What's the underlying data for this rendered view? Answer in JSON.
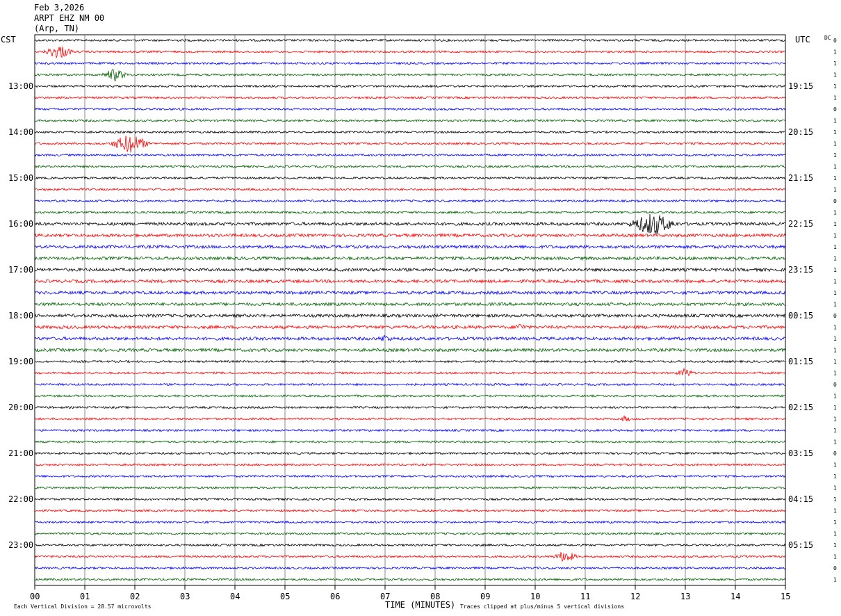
{
  "header": {
    "date": "Feb 3,2026",
    "station": "ARPT EHZ NM 00",
    "location": "(Arp, TN)"
  },
  "chart_data": {
    "type": "line",
    "subtype": "helicorder",
    "left_zone": "CST",
    "right_zone": "UTC",
    "dc_label": "DC",
    "xlabel": "TIME (MINUTES)",
    "x_ticks": [
      "00",
      "01",
      "02",
      "03",
      "04",
      "05",
      "06",
      "07",
      "08",
      "09",
      "10",
      "11",
      "12",
      "13",
      "14",
      "15"
    ],
    "xlim": [
      0,
      15
    ],
    "trace_count": 48,
    "trace_colors": [
      "#000000",
      "#ff0000",
      "#0000ff",
      "#006400"
    ],
    "left_hour_labels": [
      {
        "trace": 4,
        "label": "13:00"
      },
      {
        "trace": 8,
        "label": "14:00"
      },
      {
        "trace": 12,
        "label": "15:00"
      },
      {
        "trace": 16,
        "label": "16:00"
      },
      {
        "trace": 20,
        "label": "17:00"
      },
      {
        "trace": 24,
        "label": "18:00"
      },
      {
        "trace": 28,
        "label": "19:00"
      },
      {
        "trace": 32,
        "label": "20:00"
      },
      {
        "trace": 36,
        "label": "21:00"
      },
      {
        "trace": 40,
        "label": "22:00"
      },
      {
        "trace": 44,
        "label": "23:00"
      }
    ],
    "right_hour_labels": [
      {
        "trace": 4,
        "label": "19:15"
      },
      {
        "trace": 8,
        "label": "20:15"
      },
      {
        "trace": 12,
        "label": "21:15"
      },
      {
        "trace": 16,
        "label": "22:15"
      },
      {
        "trace": 20,
        "label": "23:15"
      },
      {
        "trace": 24,
        "label": "00:15"
      },
      {
        "trace": 28,
        "label": "01:15"
      },
      {
        "trace": 32,
        "label": "02:15"
      },
      {
        "trace": 36,
        "label": "03:15"
      },
      {
        "trace": 40,
        "label": "04:15"
      },
      {
        "trace": 44,
        "label": "05:15"
      }
    ],
    "dc_offsets": [
      "0",
      "1",
      "1",
      "1",
      "1",
      "1",
      "0",
      "1",
      "1",
      "1",
      "1",
      "1",
      "1",
      "1",
      "0",
      "1",
      "1",
      "1",
      "1",
      "1",
      "1",
      "1",
      "1",
      "1",
      "0",
      "1",
      "1",
      "1",
      "1",
      "1",
      "0",
      "1",
      "1",
      "1",
      "1",
      "1",
      "0",
      "1",
      "1",
      "1",
      "1",
      "1",
      "1",
      "1",
      "1",
      "1",
      "0",
      "1"
    ],
    "events": [
      {
        "trace": 1,
        "minute": 0.48,
        "amp": 1.6
      },
      {
        "trace": 3,
        "minute": 1.6,
        "amp": 1.4
      },
      {
        "trace": 9,
        "minute": 1.9,
        "amp": 2.2
      },
      {
        "trace": 16,
        "minute": 12.35,
        "amp": 2.6
      },
      {
        "trace": 25,
        "minute": 9.7,
        "amp": 0.7
      },
      {
        "trace": 26,
        "minute": 7.0,
        "amp": 0.7
      },
      {
        "trace": 29,
        "minute": 13.0,
        "amp": 1.0
      },
      {
        "trace": 33,
        "minute": 11.8,
        "amp": 0.6
      },
      {
        "trace": 45,
        "minute": 10.6,
        "amp": 1.3
      }
    ],
    "clip_note": "Traces clipped at plus/minus 5 vertical divisions",
    "scale_note": "Each Vertical Division =   28.57 microvolts"
  }
}
